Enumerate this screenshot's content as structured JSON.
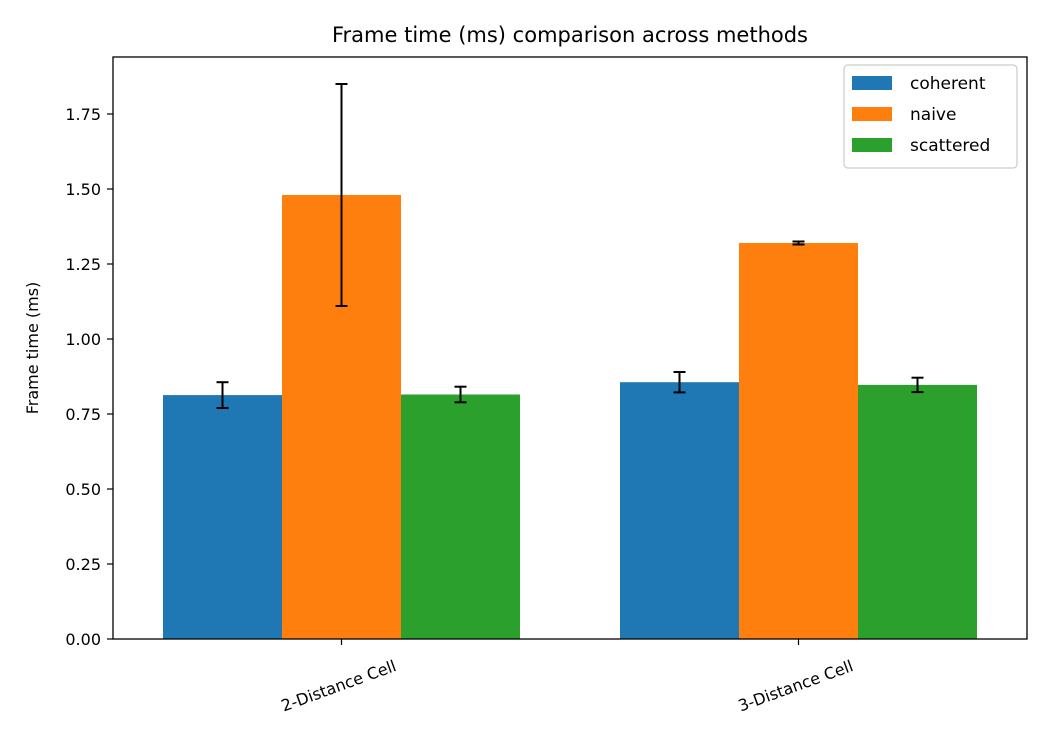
{
  "chart_data": {
    "type": "bar",
    "title": "Frame time (ms) comparison across methods",
    "xlabel": "",
    "ylabel": "Frame time (ms)",
    "ylim": [
      0,
      1.94
    ],
    "yticks": [
      "0.00",
      "0.25",
      "0.50",
      "0.75",
      "1.00",
      "1.25",
      "1.50",
      "1.75"
    ],
    "categories": [
      "2-Distance Cell",
      "3-Distance Cell"
    ],
    "series": [
      {
        "name": "coherent",
        "color": "#1f77b4",
        "values": [
          0.813,
          0.856
        ],
        "errors": [
          0.043,
          0.034
        ]
      },
      {
        "name": "naive",
        "color": "#ff7f0e",
        "values": [
          1.48,
          1.32
        ],
        "errors": [
          0.37,
          0.005
        ]
      },
      {
        "name": "scattered",
        "color": "#2ca02c",
        "values": [
          0.815,
          0.847
        ],
        "errors": [
          0.026,
          0.024
        ]
      }
    ],
    "legend": "top-right",
    "grid": false
  }
}
